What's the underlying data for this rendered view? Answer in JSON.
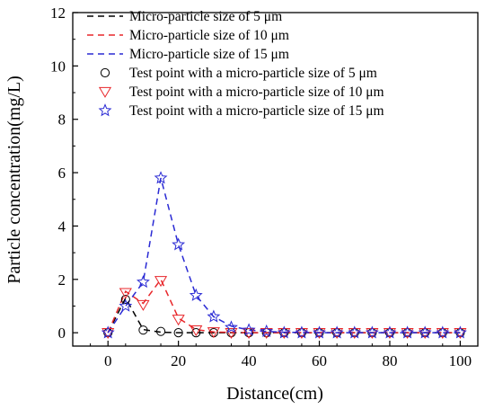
{
  "chart_data": {
    "type": "line",
    "title": "",
    "xlabel": "Distance(cm)",
    "ylabel": "Particle concentration(mg/L)",
    "xlim": [
      -10,
      105
    ],
    "ylim": [
      -0.5,
      12
    ],
    "xticks": [
      0,
      20,
      40,
      60,
      80,
      100
    ],
    "yticks": [
      0,
      2,
      4,
      6,
      8,
      10,
      12
    ],
    "grid": false,
    "legend_position": "top-left",
    "series": [
      {
        "name": "Micro-particle size of 5 μm",
        "kind": "dashed-line",
        "color": "#000000",
        "x": [
          0,
          5,
          10,
          15,
          20,
          25,
          30,
          35,
          40,
          45,
          50,
          55,
          60,
          65,
          70,
          75,
          80,
          85,
          90,
          95,
          100
        ],
        "y": [
          0,
          1.3,
          0.12,
          0.02,
          0.0,
          0.0,
          0.0,
          0.0,
          0.0,
          0.0,
          0.0,
          0.0,
          0.0,
          0.0,
          0.0,
          0.0,
          0.0,
          0.0,
          0.0,
          0.0,
          0.0
        ]
      },
      {
        "name": "Micro-particle size of 10 μm",
        "kind": "dashed-line",
        "color": "#e8262a",
        "x": [
          0,
          5,
          10,
          15,
          20,
          25,
          30,
          35,
          40,
          45,
          50,
          55,
          60,
          65,
          70,
          75,
          80,
          85,
          90,
          95,
          100
        ],
        "y": [
          0,
          1.55,
          1.1,
          2.0,
          0.55,
          0.12,
          0.03,
          0.01,
          0.0,
          0.0,
          0.0,
          0.0,
          0.0,
          0.0,
          0.0,
          0.0,
          0.0,
          0.0,
          0.0,
          0.0,
          0.0
        ]
      },
      {
        "name": "Micro-particle size of 15 μm",
        "kind": "dashed-line",
        "color": "#2a2ad4",
        "x": [
          0,
          5,
          10,
          15,
          20,
          25,
          30,
          35,
          40,
          45,
          50,
          55,
          60,
          65,
          70,
          75,
          80,
          85,
          90,
          95,
          100
        ],
        "y": [
          0,
          1.0,
          1.9,
          5.8,
          3.3,
          1.4,
          0.6,
          0.25,
          0.1,
          0.05,
          0.02,
          0.01,
          0.0,
          0.0,
          0.0,
          0.0,
          0.0,
          0.0,
          0.0,
          0.0,
          0.0
        ]
      },
      {
        "name": "Test point with a micro-particle size of 5 μm",
        "kind": "marker",
        "marker": "circle",
        "color": "#000000",
        "x": [
          0,
          5,
          10,
          15,
          20,
          25,
          30,
          35,
          40,
          45,
          50,
          55,
          60,
          65,
          70,
          75,
          80,
          85,
          90,
          95,
          100
        ],
        "y": [
          0,
          1.25,
          0.1,
          0.05,
          0.0,
          0.0,
          0.0,
          0.0,
          0.0,
          0.0,
          0.0,
          0.0,
          0.0,
          0.0,
          0.0,
          0.0,
          0.0,
          0.0,
          0.0,
          0.0,
          0.0
        ]
      },
      {
        "name": "Test point with a micro-particle size of 10 μm",
        "kind": "marker",
        "marker": "triangle-down",
        "color": "#e8262a",
        "x": [
          0,
          5,
          10,
          15,
          20,
          25,
          30,
          35,
          40,
          45,
          50,
          55,
          60,
          65,
          70,
          75,
          80,
          85,
          90,
          95,
          100
        ],
        "y": [
          0,
          1.5,
          1.05,
          1.95,
          0.5,
          0.1,
          0.03,
          0.0,
          0.0,
          0.0,
          0.0,
          0.0,
          0.0,
          0.0,
          0.0,
          0.0,
          0.0,
          0.0,
          0.0,
          0.0,
          0.0
        ]
      },
      {
        "name": "Test point with a micro-particle size of 15 μm",
        "kind": "marker",
        "marker": "star",
        "color": "#2a2ad4",
        "x": [
          0,
          5,
          10,
          15,
          20,
          25,
          30,
          35,
          40,
          45,
          50,
          55,
          60,
          65,
          70,
          75,
          80,
          85,
          90,
          95,
          100
        ],
        "y": [
          0,
          1.0,
          1.9,
          5.8,
          3.3,
          1.4,
          0.6,
          0.2,
          0.1,
          0.05,
          0.0,
          0.0,
          0.0,
          0.0,
          0.0,
          0.0,
          0.0,
          0.0,
          0.0,
          0.0,
          0.0
        ]
      }
    ]
  }
}
